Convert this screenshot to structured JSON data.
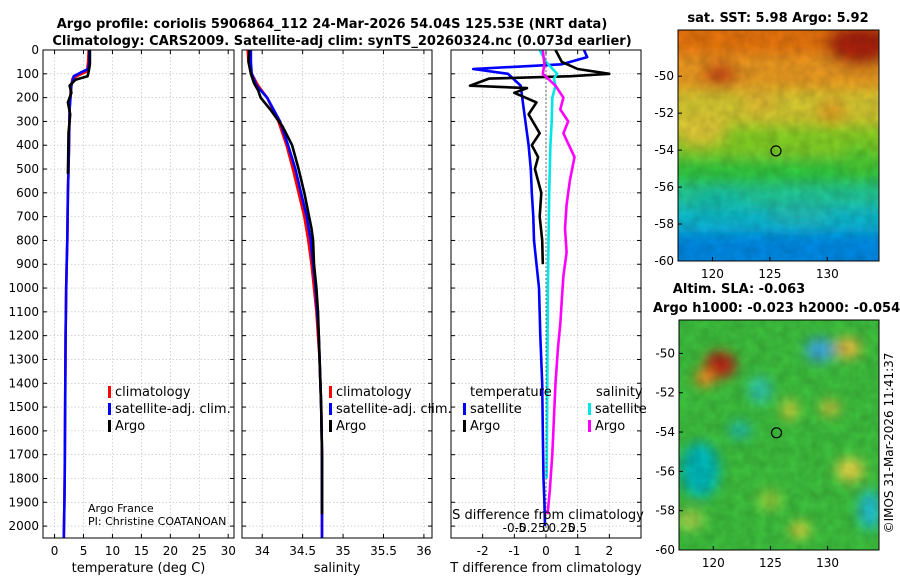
{
  "title_line1": "Argo profile: coriolis 5906864_112 24-Mar-2026 54.04S 125.53E (NRT data)",
  "title_line2": "Climatology: CARS2009. Satellite-adj clim: synTS_20260324.nc (0.073d earlier)",
  "credits": {
    "institution": "Argo France",
    "pi": "PI: Christine COATANOAN"
  },
  "watermark": "©IMOS 31-Mar-2026 11:41:37",
  "colors": {
    "climatology": "#ff0000",
    "satellite": "#0000ff",
    "argo": "#000000",
    "sat_salinity": "#00e5e5",
    "argo_salinity": "#ff00ff"
  },
  "legend_labels": {
    "climatology": "climatology",
    "satellite_adj": "satellite-adj. clim.",
    "argo": "Argo",
    "temperature": "temperature",
    "salinity": "salinity",
    "satellite": "satellite"
  },
  "chart_data": [
    {
      "id": "temperature_profile",
      "type": "line",
      "xlabel": "temperature (deg C)",
      "xlim": [
        -2,
        31
      ],
      "ylim": [
        0,
        2050
      ],
      "y_reversed": true,
      "xticks": [
        0,
        5,
        10,
        15,
        20,
        25,
        30
      ],
      "yticks": [
        0,
        100,
        200,
        300,
        400,
        500,
        600,
        700,
        800,
        900,
        1000,
        1100,
        1200,
        1300,
        1400,
        1500,
        1600,
        1700,
        1800,
        1900,
        2000
      ],
      "series": [
        {
          "name": "climatology",
          "color": "#ff0000",
          "x": [
            5.9,
            5.8,
            5.6,
            4.2,
            3.1,
            2.8,
            2.6,
            2.5,
            2.4,
            2.3,
            2.25,
            2.2,
            2.1,
            2.0,
            1.9,
            1.85,
            1.8,
            1.75,
            1.7,
            1.6
          ],
          "y": [
            0,
            50,
            90,
            105,
            120,
            160,
            250,
            400,
            500,
            600,
            700,
            800,
            900,
            1000,
            1200,
            1400,
            1600,
            1800,
            1900,
            2050
          ]
        },
        {
          "name": "satellite-adj. clim.",
          "color": "#0000ff",
          "x": [
            6.0,
            6.0,
            5.8,
            4.5,
            3.3,
            2.9,
            2.6,
            2.5,
            2.4,
            2.3,
            2.25,
            2.2,
            2.1,
            2.0,
            1.9,
            1.85,
            1.8,
            1.75,
            1.7,
            1.6
          ],
          "y": [
            0,
            50,
            80,
            95,
            110,
            150,
            250,
            400,
            500,
            600,
            700,
            800,
            900,
            1000,
            1200,
            1400,
            1600,
            1800,
            1900,
            2050
          ]
        },
        {
          "name": "Argo",
          "color": "#000000",
          "x": [
            6.1,
            6.1,
            5.9,
            5.7,
            3.6,
            2.6,
            2.9,
            2.3,
            2.7,
            2.4,
            2.35,
            2.3
          ],
          "y": [
            0,
            60,
            90,
            110,
            125,
            150,
            180,
            220,
            270,
            350,
            450,
            520
          ]
        }
      ]
    },
    {
      "id": "salinity_profile",
      "type": "line",
      "xlabel": "salinity",
      "xlim": [
        33.75,
        36.1
      ],
      "ylim": [
        0,
        2050
      ],
      "y_reversed": true,
      "xticks": [
        34,
        34.5,
        35,
        35.5,
        36
      ],
      "xticklabels": [
        "34",
        "34.5",
        "35",
        "35.5",
        "36"
      ],
      "series": [
        {
          "name": "climatology",
          "color": "#ff0000",
          "x": [
            33.82,
            33.83,
            33.87,
            33.95,
            34.06,
            34.2,
            34.3,
            34.38,
            34.45,
            34.52,
            34.57,
            34.61,
            34.64,
            34.67,
            34.69,
            34.71,
            34.72,
            34.73,
            34.735,
            34.74,
            34.74,
            34.74,
            34.74
          ],
          "y": [
            0,
            50,
            100,
            150,
            200,
            300,
            400,
            500,
            600,
            700,
            800,
            900,
            1000,
            1100,
            1200,
            1300,
            1400,
            1500,
            1600,
            1700,
            1800,
            1900,
            2050
          ]
        },
        {
          "name": "satellite-adj. clim.",
          "color": "#0000ff",
          "x": [
            33.86,
            33.86,
            33.87,
            33.93,
            34.06,
            34.22,
            34.32,
            34.41,
            34.48,
            34.55,
            34.6,
            34.63,
            34.66,
            34.68,
            34.7,
            34.71,
            34.72,
            34.73,
            34.735,
            34.74,
            34.74,
            34.74,
            34.74
          ],
          "y": [
            0,
            50,
            100,
            150,
            200,
            300,
            400,
            500,
            600,
            700,
            800,
            900,
            1000,
            1100,
            1200,
            1300,
            1400,
            1500,
            1600,
            1700,
            1800,
            1900,
            2050
          ]
        },
        {
          "name": "Argo",
          "color": "#000000",
          "x": [
            33.84,
            33.83,
            33.86,
            33.9,
            33.95,
            33.98,
            34.1,
            34.25,
            34.37,
            34.45,
            34.52,
            34.58,
            34.61,
            34.63,
            34.64,
            34.67,
            34.69,
            34.7,
            34.71,
            34.72,
            34.73,
            34.735,
            34.74,
            34.74,
            34.74
          ],
          "y": [
            0,
            50,
            100,
            140,
            170,
            200,
            250,
            320,
            400,
            500,
            600,
            700,
            750,
            800,
            900,
            1000,
            1100,
            1200,
            1300,
            1400,
            1500,
            1600,
            1700,
            1800,
            1950
          ]
        }
      ]
    },
    {
      "id": "difference_profile",
      "type": "line",
      "xlabel": "T difference from climatology",
      "xlabel2": "S difference from climatology",
      "xlim": [
        -3,
        3
      ],
      "ylim": [
        0,
        2050
      ],
      "y_reversed": true,
      "xticks": [
        -2,
        -1,
        0,
        1,
        2
      ],
      "xticklabels": [
        "-2",
        "-1",
        "0",
        "1",
        "2"
      ],
      "sticks": [
        -1,
        -0.5,
        0,
        0.5,
        1
      ],
      "sticklabels": [
        "-0.5",
        "-0.25",
        "0",
        "0.25",
        "0.5"
      ],
      "legend_headers": [
        "temperature",
        "salinity"
      ],
      "series": [
        {
          "name": "temperature satellite",
          "color": "#0000ff",
          "x": [
            1.2,
            1.3,
            0.5,
            -2.3,
            -1.2,
            -0.8,
            -0.7,
            -0.55,
            -0.48,
            -0.45,
            -0.4,
            -0.38,
            -0.3,
            -0.22,
            -0.18,
            -0.12,
            -0.1,
            -0.08,
            -0.05,
            -0.03
          ],
          "y": [
            0,
            30,
            60,
            80,
            100,
            150,
            250,
            400,
            500,
            600,
            700,
            800,
            900,
            1000,
            1200,
            1400,
            1600,
            1800,
            1900,
            2000
          ]
        },
        {
          "name": "temperature Argo",
          "color": "#000000",
          "x": [
            0.3,
            0.5,
            1.0,
            2.0,
            0.8,
            -1.8,
            -2.4,
            -0.6,
            -1.0,
            -0.3,
            -0.55,
            -0.2,
            -0.45,
            -0.25,
            -0.35,
            -0.15,
            -0.2,
            -0.12,
            -0.1
          ],
          "y": [
            0,
            50,
            80,
            100,
            110,
            120,
            150,
            160,
            180,
            220,
            270,
            350,
            400,
            450,
            500,
            600,
            700,
            800,
            900
          ]
        },
        {
          "name": "salinity satellite",
          "color": "#00e5e5",
          "x": [
            -0.2,
            0.0,
            0.35,
            0.25,
            0.3,
            0.2,
            0.18,
            0.14,
            0.12,
            0.1,
            0.09,
            0.08,
            0.06,
            0.05,
            0.04,
            0.03,
            0.02
          ],
          "y": [
            0,
            50,
            100,
            120,
            150,
            200,
            300,
            400,
            500,
            600,
            700,
            800,
            1000,
            1200,
            1400,
            1600,
            1800
          ]
        },
        {
          "name": "salinity Argo",
          "color": "#ff00ff",
          "x": [
            -0.1,
            -0.05,
            -0.1,
            0.3,
            0.55,
            0.45,
            0.7,
            0.55,
            0.9,
            0.75,
            0.65,
            0.6,
            0.65,
            0.55,
            0.5,
            0.45,
            0.38,
            0.3,
            0.25,
            0.2,
            0.12,
            0.05
          ],
          "y": [
            0,
            60,
            100,
            150,
            200,
            250,
            300,
            350,
            450,
            550,
            650,
            750,
            850,
            950,
            1050,
            1150,
            1250,
            1400,
            1550,
            1700,
            1850,
            1950
          ]
        }
      ]
    },
    {
      "id": "sst_map",
      "type": "heatmap",
      "title": "sat. SST: 5.98 Argo: 5.92",
      "xlim": [
        117,
        134.5
      ],
      "ylim": [
        -60,
        -47.5
      ],
      "xticks": [
        120,
        125,
        130
      ],
      "yticks": [
        -50,
        -52,
        -54,
        -56,
        -58,
        -60
      ],
      "marker": {
        "lon": 125.53,
        "lat": -54.04
      }
    },
    {
      "id": "sla_map",
      "type": "heatmap",
      "title": "Altim. SLA: -0.063",
      "subtitle": "Argo h1000: -0.023 h2000: -0.054",
      "xlim": [
        117,
        134.5
      ],
      "ylim": [
        -60,
        -48.3
      ],
      "xticks": [
        120,
        125,
        130
      ],
      "yticks": [
        -50,
        -52,
        -54,
        -56,
        -58,
        -60
      ],
      "marker": {
        "lon": 125.53,
        "lat": -54.04
      }
    }
  ]
}
